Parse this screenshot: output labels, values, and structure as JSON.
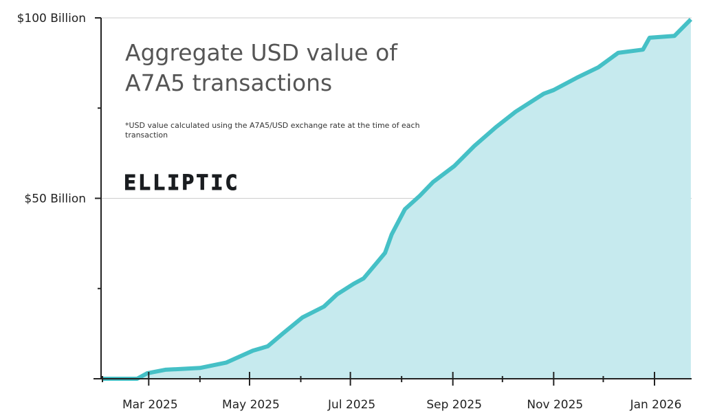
{
  "chart_data": {
    "type": "area",
    "title": "Aggregate USD value of A7A5 transactions",
    "title_lines": [
      "Aggregate USD value of",
      "A7A5 transactions"
    ],
    "subtitle_lines": [
      "*USD value calculated using the A7A5/USD exchange rate at the time of each",
      "transaction"
    ],
    "logo_text": "ELLIPTIC",
    "xlabel": "",
    "ylabel": "",
    "x_ticks": [
      {
        "date": "2025-03-01",
        "label": "Mar 2025"
      },
      {
        "date": "2025-05-01",
        "label": "May 2025"
      },
      {
        "date": "2025-07-01",
        "label": "Jul 2025"
      },
      {
        "date": "2025-09-01",
        "label": "Sep 2025"
      },
      {
        "date": "2025-11-01",
        "label": "Nov 2025"
      },
      {
        "date": "2026-01-01",
        "label": "Jan 2026"
      }
    ],
    "x_minor_ticks": [
      "2025-02-01",
      "2025-04-01",
      "2025-06-01",
      "2025-08-01",
      "2025-10-01",
      "2025-12-01"
    ],
    "y_ticks": [
      {
        "value": 50,
        "label": "$50 Billion"
      },
      {
        "value": 100,
        "label": "$100 Billion"
      }
    ],
    "y_minor_ticks": [
      25,
      75
    ],
    "xlim": [
      "2025-01-29",
      "2026-01-23"
    ],
    "ylim": [
      0,
      100
    ],
    "y_unit": "Billion USD",
    "grid": "horizontal at labeled y ticks",
    "colors": {
      "line": "#45c0c6",
      "fill": "#c6eaee",
      "grid": "#cccccc",
      "axis": "#222222"
    },
    "series": [
      {
        "x": [
          "2025-02-01",
          "2025-02-22",
          "2025-02-28",
          "2025-03-11",
          "2025-04-01",
          "2025-04-17",
          "2025-05-03",
          "2025-05-12",
          "2025-05-21",
          "2025-06-02",
          "2025-06-15",
          "2025-06-23",
          "2025-07-03",
          "2025-07-09",
          "2025-07-16",
          "2025-07-22",
          "2025-07-26",
          "2025-08-03",
          "2025-08-12",
          "2025-08-20",
          "2025-09-02",
          "2025-09-14",
          "2025-09-27",
          "2025-10-09",
          "2025-10-26",
          "2025-11-01",
          "2025-11-15",
          "2025-11-28",
          "2025-12-10",
          "2025-12-25",
          "2025-12-29",
          "2026-01-13",
          "2026-01-23"
        ],
        "y": [
          0,
          0,
          1.5,
          2.5,
          3,
          4.5,
          7.8,
          9,
          12.5,
          17,
          20,
          23.4,
          26.3,
          27.8,
          31.6,
          34.9,
          40,
          47,
          50.7,
          54.5,
          59,
          64.5,
          69.7,
          74,
          79,
          80,
          83.4,
          86.3,
          90.3,
          91.2,
          94.5,
          95,
          99.6
        ]
      }
    ]
  }
}
